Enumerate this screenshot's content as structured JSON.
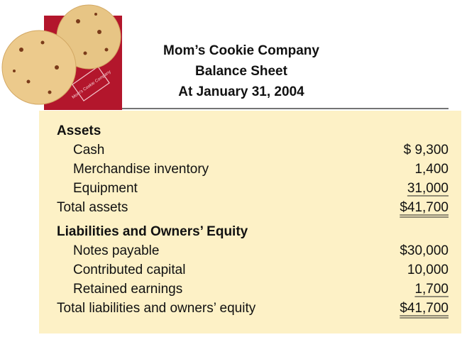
{
  "header": {
    "title": "Mom’s Cookie Company",
    "subtitle": "Balance Sheet",
    "date": "At January 31, 2004"
  },
  "logo": {
    "text": "Mom’s Cookie Company"
  },
  "table": {
    "sections": [
      {
        "heading": "Assets",
        "items": [
          {
            "label": "Cash",
            "amount": "$ 9,300"
          },
          {
            "label": "Merchandise inventory",
            "amount": "1,400"
          },
          {
            "label": "Equipment",
            "amount": "31,000"
          }
        ],
        "total": {
          "label": "Total assets",
          "amount": "$41,700"
        }
      },
      {
        "heading": "Liabilities and Owners’ Equity",
        "items": [
          {
            "label": "Notes payable",
            "amount": "$30,000"
          },
          {
            "label": "Contributed capital",
            "amount": "10,000"
          },
          {
            "label": "Retained earnings",
            "amount": "1,700"
          }
        ],
        "total": {
          "label": "Total liabilities and owners’ equity",
          "amount": "$41,700"
        }
      }
    ]
  }
}
